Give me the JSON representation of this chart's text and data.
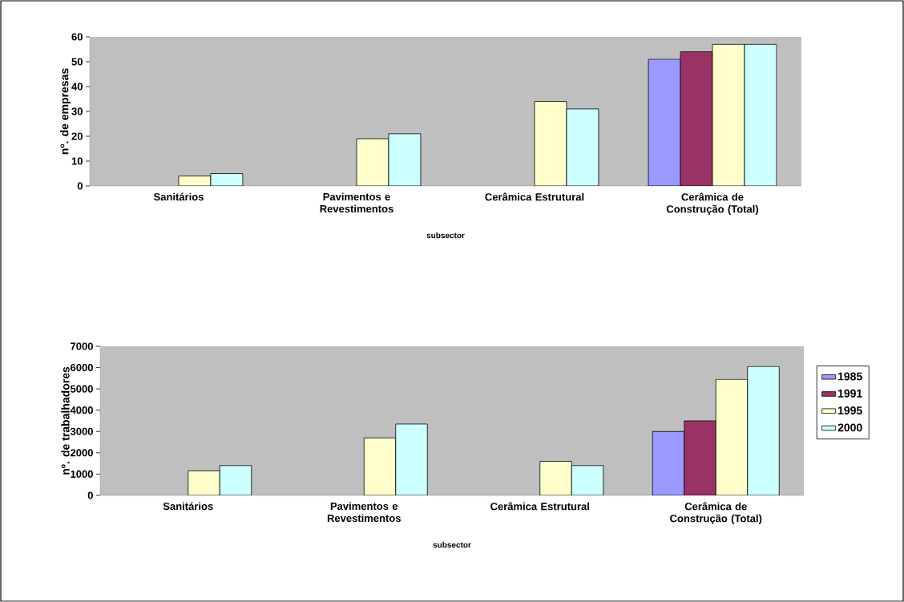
{
  "chart_data": [
    {
      "type": "bar",
      "categories": [
        "Sanitários",
        "Pavimentos e Revestimentos",
        "Cerâmica Estrutural",
        "Cerâmica de Construção (Total)"
      ],
      "xlabel": "subsector",
      "ylabel": "nº. de empresas",
      "ylim": [
        0,
        60
      ],
      "yticks": [
        0,
        10,
        20,
        30,
        40,
        50,
        60
      ],
      "grid": false,
      "series": [
        {
          "color": "#9999ff",
          "values": [
            null,
            null,
            null,
            51
          ]
        },
        {
          "color": "#993366",
          "values": [
            null,
            null,
            null,
            54
          ]
        },
        {
          "color": "#ffffcc",
          "values": [
            4,
            19,
            34,
            57
          ]
        },
        {
          "color": "#ccffff",
          "values": [
            5,
            21,
            31,
            57
          ]
        }
      ]
    },
    {
      "type": "bar",
      "categories": [
        "Sanitários",
        "Pavimentos e Revestimentos",
        "Cerâmica Estrutural",
        "Cerâmica de Construção (Total)"
      ],
      "xlabel": "subsector",
      "ylabel": "nº. de trabalhadores",
      "ylim": [
        0,
        7000
      ],
      "yticks": [
        0,
        1000,
        2000,
        3000,
        4000,
        5000,
        6000,
        7000
      ],
      "grid": false,
      "legend": "right",
      "series": [
        {
          "name": "1985",
          "color": "#9999ff",
          "values": [
            null,
            null,
            null,
            3000
          ]
        },
        {
          "name": "1991",
          "color": "#993366",
          "values": [
            null,
            null,
            null,
            3500
          ]
        },
        {
          "name": "1995",
          "color": "#ffffcc",
          "values": [
            1150,
            2700,
            1600,
            5450
          ]
        },
        {
          "name": "2000",
          "color": "#ccffff",
          "values": [
            1400,
            3350,
            1400,
            6050
          ]
        }
      ]
    }
  ]
}
